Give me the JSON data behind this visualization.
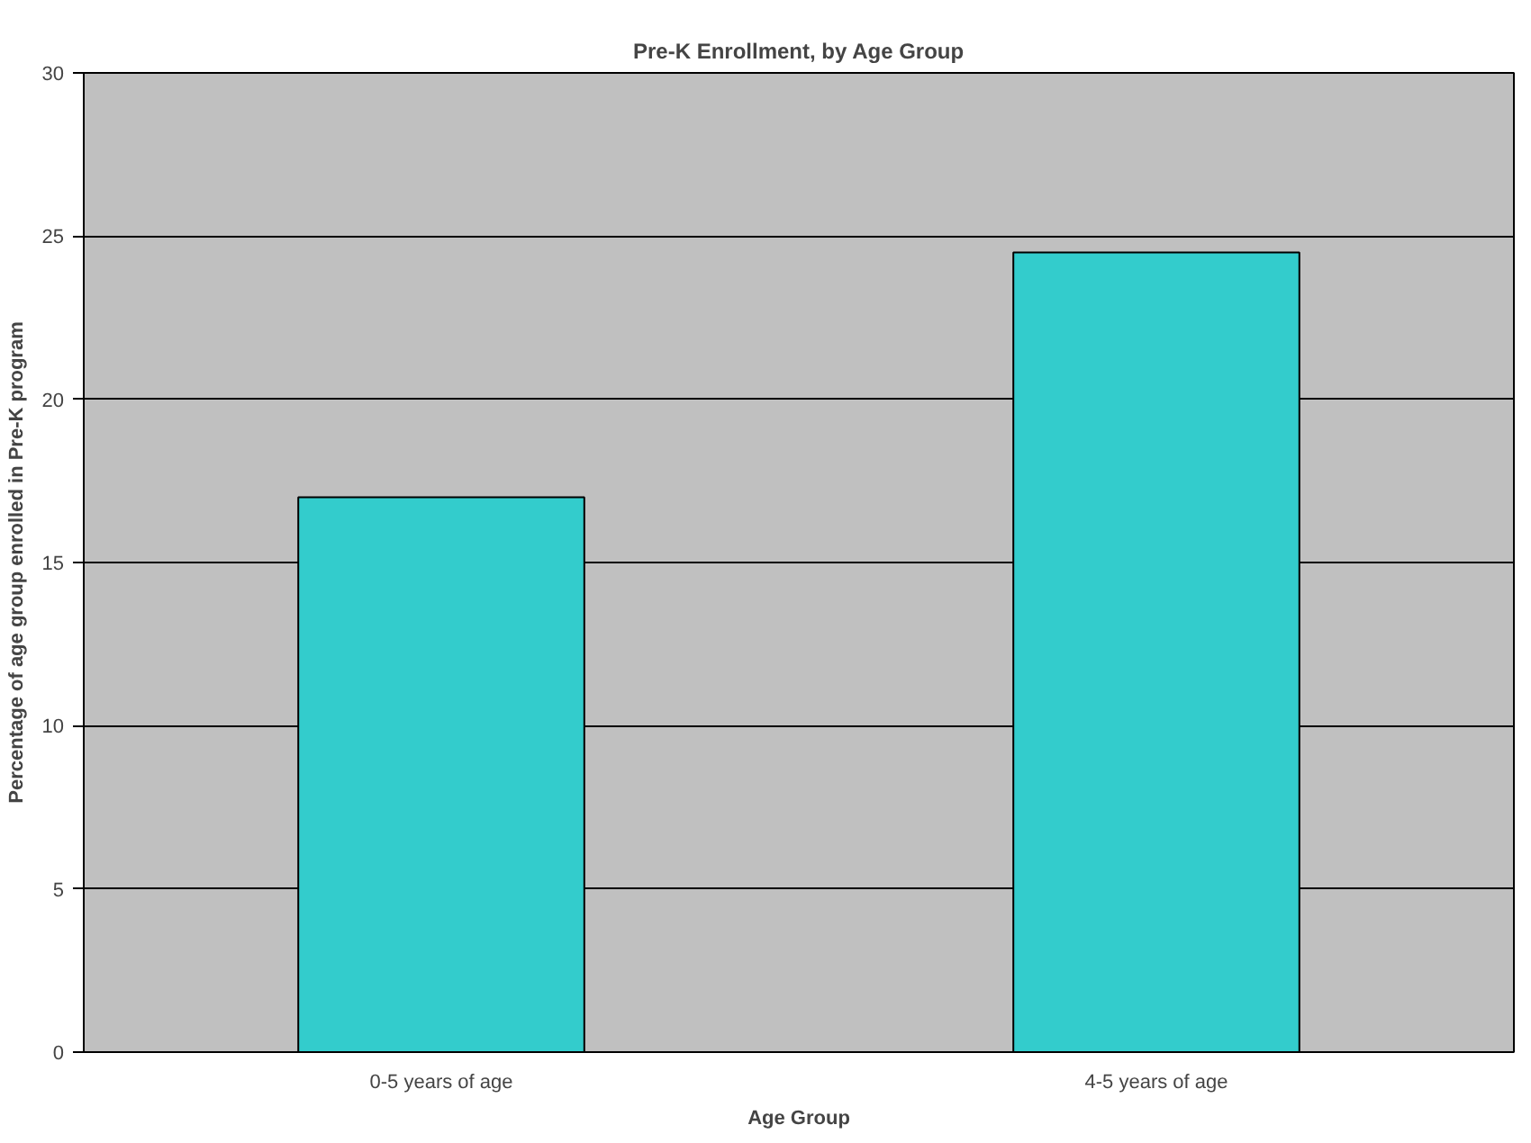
{
  "chart_data": {
    "type": "bar",
    "title": "Pre-K Enrollment, by Age Group",
    "xlabel": "Age Group",
    "ylabel": "Percentage of age group enrolled in Pre-K program",
    "categories": [
      "0-5 years of age",
      "4-5 years of age"
    ],
    "values": [
      17,
      24.5
    ],
    "color": "#33cccc",
    "ylim": [
      0,
      30
    ],
    "yticks": [
      0,
      5,
      10,
      15,
      20,
      25,
      30
    ],
    "grid": "y"
  }
}
